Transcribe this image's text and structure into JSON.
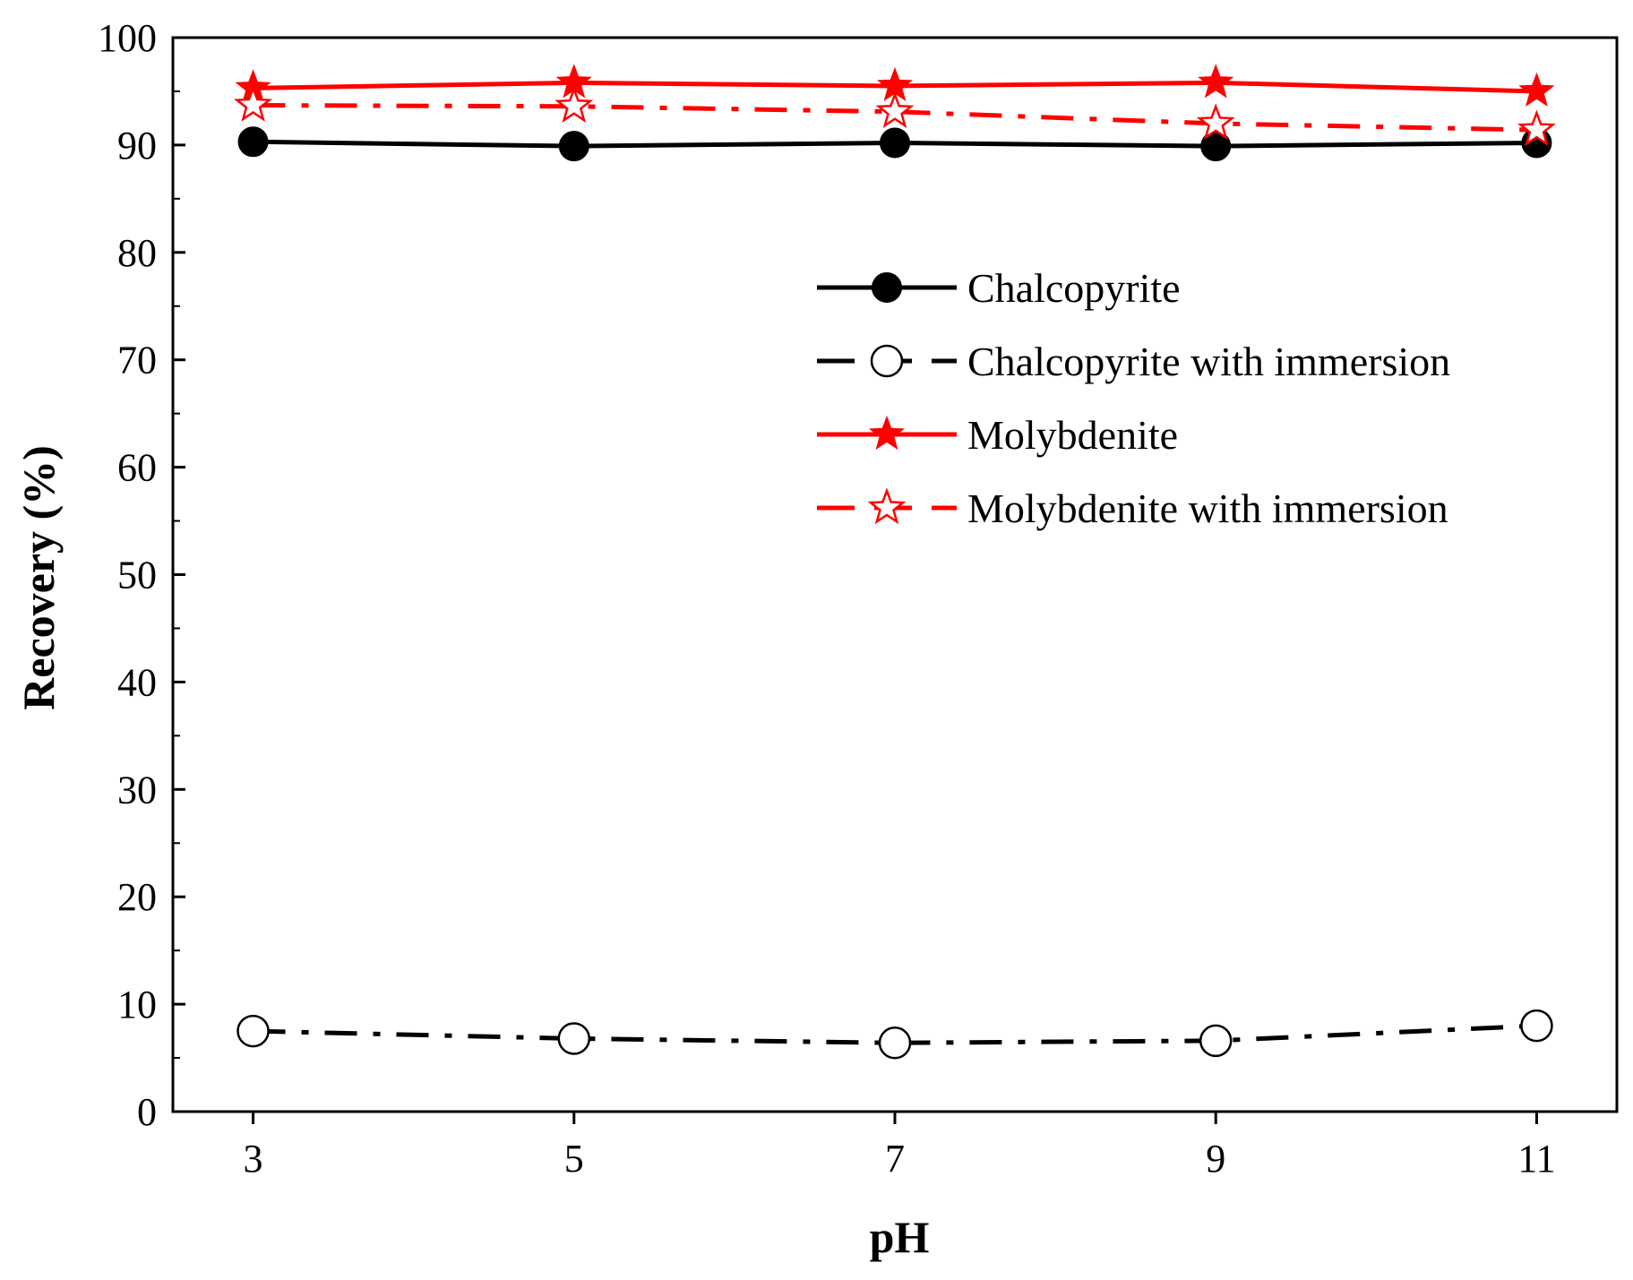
{
  "chart_data": {
    "type": "line",
    "title": "",
    "xlabel": "pH",
    "ylabel": "Recovery (%)",
    "x": [
      3,
      5,
      7,
      9,
      11
    ],
    "xticks": [
      "3",
      "5",
      "7",
      "9",
      "11"
    ],
    "xlim": [
      2.5,
      11.5
    ],
    "ylim": [
      0,
      100
    ],
    "yticks": [
      "0",
      "10",
      "20",
      "30",
      "40",
      "50",
      "60",
      "70",
      "80",
      "90",
      "100"
    ],
    "grid": false,
    "legend_position": "upper-right",
    "series": [
      {
        "name": "Chalcopyrite",
        "values": [
          90.3,
          89.9,
          90.2,
          89.9,
          90.2
        ],
        "color": "#000000",
        "line": "solid",
        "marker": "circle-filled"
      },
      {
        "name": "Chalcopyrite with immersion",
        "values": [
          7.5,
          6.8,
          6.4,
          6.6,
          8.0
        ],
        "color": "#000000",
        "line": "dashdot",
        "marker": "circle-open"
      },
      {
        "name": "Molybdenite",
        "values": [
          95.3,
          95.8,
          95.5,
          95.8,
          95.0
        ],
        "color": "#ff0000",
        "line": "solid",
        "marker": "star-filled"
      },
      {
        "name": "Molybdenite with immersion",
        "values": [
          93.7,
          93.6,
          93.1,
          92.0,
          91.4
        ],
        "color": "#ff0000",
        "line": "dashdot",
        "marker": "star-open"
      }
    ]
  }
}
